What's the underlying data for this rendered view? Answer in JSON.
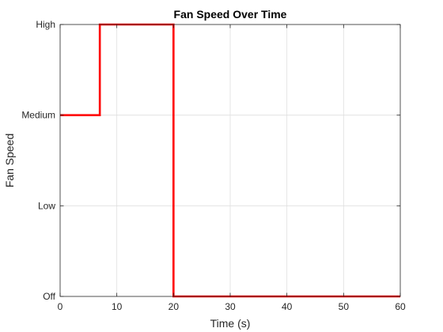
{
  "chart_data": {
    "type": "line",
    "title": "Fan Speed Over Time",
    "xlabel": "Time (s)",
    "ylabel": "Fan Speed",
    "xlim": [
      0,
      60
    ],
    "ylim": [
      0,
      3
    ],
    "xticks": [
      0,
      10,
      20,
      30,
      40,
      50,
      60
    ],
    "xtick_labels": [
      "0",
      "10",
      "20",
      "30",
      "40",
      "50",
      "60"
    ],
    "yticks": [
      0,
      1,
      2,
      3
    ],
    "ytick_labels": [
      "Off",
      "Low",
      "Medium",
      "High"
    ],
    "grid": true,
    "line_color": "#ff0000",
    "series": [
      {
        "x": [
          0,
          7,
          7,
          20,
          20,
          60
        ],
        "y": [
          2,
          2,
          3,
          3,
          0,
          0
        ]
      }
    ]
  }
}
